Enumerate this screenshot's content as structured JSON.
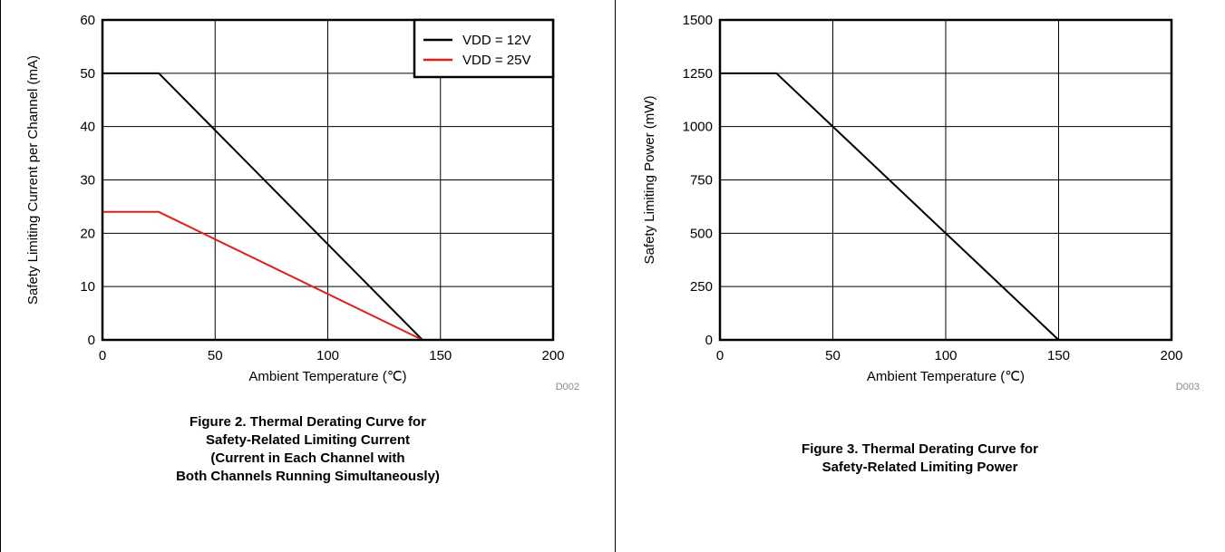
{
  "chart_data": [
    {
      "type": "line",
      "xlabel": "Ambient Temperature (℃)",
      "ylabel": "Safety Limiting Current per Channel (mA)",
      "xlim": [
        0,
        200
      ],
      "ylim": [
        0,
        60
      ],
      "xticks": [
        0,
        50,
        100,
        150,
        200
      ],
      "yticks": [
        0,
        10,
        20,
        30,
        40,
        50,
        60
      ],
      "grid": true,
      "legend_position": "top-right",
      "code": "D002",
      "series": [
        {
          "name": "VDD = 12V",
          "color": "#000000",
          "x": [
            0,
            25,
            142
          ],
          "y": [
            50,
            50,
            0
          ]
        },
        {
          "name": "VDD = 25V",
          "color": "#e0211b",
          "x": [
            0,
            25,
            142
          ],
          "y": [
            24,
            24,
            0
          ]
        }
      ]
    },
    {
      "type": "line",
      "xlabel": "Ambient Temperature (℃)",
      "ylabel": "Safety Limiting Power (mW)",
      "xlim": [
        0,
        200
      ],
      "ylim": [
        0,
        1500
      ],
      "xticks": [
        0,
        50,
        100,
        150,
        200
      ],
      "yticks": [
        0,
        250,
        500,
        750,
        1000,
        1250,
        1500
      ],
      "grid": true,
      "code": "D003",
      "series": [
        {
          "color": "#000000",
          "x": [
            0,
            25,
            150
          ],
          "y": [
            1250,
            1250,
            0
          ]
        }
      ]
    }
  ],
  "captions": [
    [
      "Figure 2. Thermal Derating Curve for",
      "Safety-Related Limiting Current",
      "(Current in Each Channel with",
      "Both Channels Running Simultaneously)"
    ],
    [
      "Figure 3. Thermal Derating Curve for",
      "Safety-Related Limiting Power"
    ]
  ]
}
